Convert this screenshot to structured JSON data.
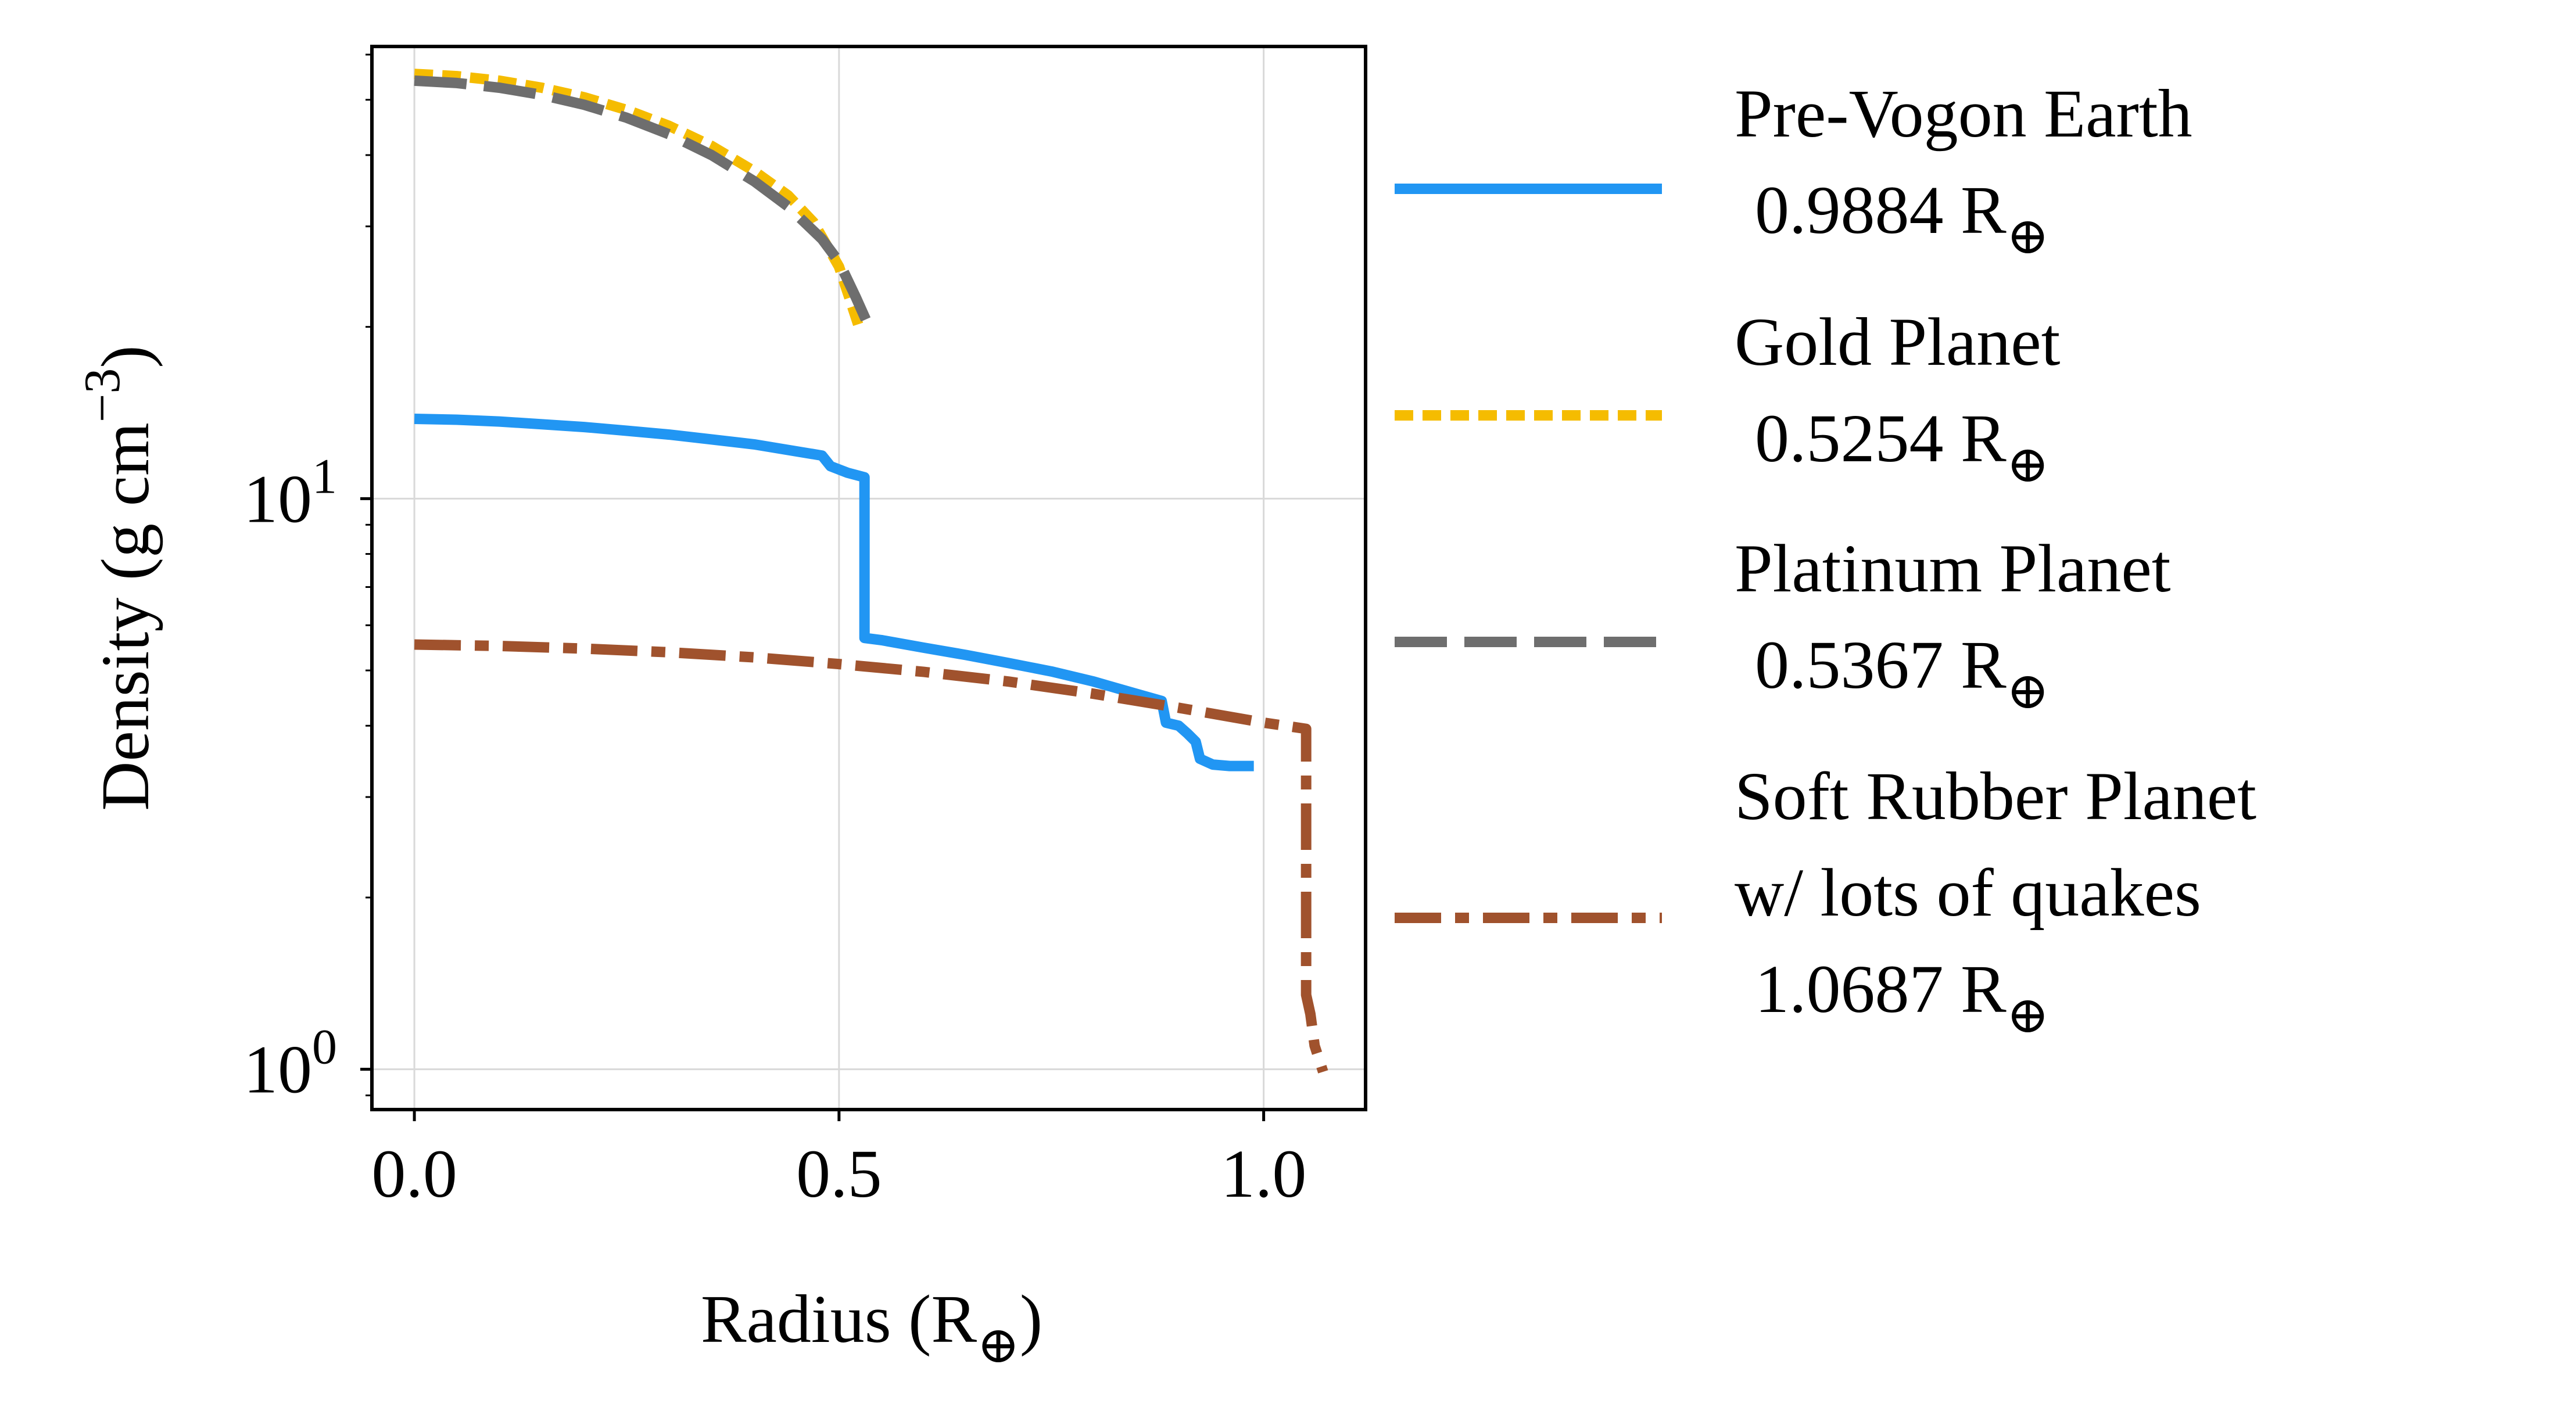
{
  "chart_data": {
    "type": "line",
    "xscale": "linear",
    "yscale": "log",
    "xlim": [
      -0.05,
      1.12
    ],
    "ylim": [
      0.85,
      62
    ],
    "grid": true,
    "legend_location": "outside-right",
    "xlabel": {
      "main": "Radius (R",
      "sub": "⊕",
      "close": ")"
    },
    "ylabel": {
      "main": "Density (g cm",
      "sup": "−3",
      "close": ")"
    },
    "x_ticks": [
      {
        "value": 0.0,
        "label": "0.0"
      },
      {
        "value": 0.5,
        "label": "0.5"
      },
      {
        "value": 1.0,
        "label": "1.0"
      }
    ],
    "y_ticks": [
      {
        "value": 1,
        "base": "10",
        "exp": "0"
      },
      {
        "value": 10,
        "base": "10",
        "exp": "1"
      }
    ],
    "series": [
      {
        "name": "Pre-Vogon Earth",
        "radius_value": "0.9884 R",
        "color": "#2196f3",
        "style": "solid",
        "x": [
          0.0,
          0.05,
          0.1,
          0.15,
          0.2,
          0.25,
          0.3,
          0.35,
          0.4,
          0.45,
          0.48,
          0.49,
          0.51,
          0.53,
          0.53,
          0.55,
          0.6,
          0.65,
          0.7,
          0.75,
          0.8,
          0.85,
          0.88,
          0.885,
          0.9,
          0.91,
          0.92,
          0.925,
          0.94,
          0.96,
          0.9884
        ],
        "y": [
          13.8,
          13.75,
          13.65,
          13.5,
          13.35,
          13.15,
          12.95,
          12.7,
          12.45,
          12.1,
          11.9,
          11.4,
          11.1,
          10.9,
          5.7,
          5.65,
          5.48,
          5.32,
          5.15,
          4.98,
          4.78,
          4.55,
          4.42,
          4.05,
          4.0,
          3.88,
          3.75,
          3.5,
          3.42,
          3.4,
          3.4
        ]
      },
      {
        "name": "Gold Planet",
        "radius_value": "0.5254 R",
        "color": "#f5bc00",
        "style": "dotted",
        "x": [
          0.0,
          0.05,
          0.1,
          0.15,
          0.2,
          0.25,
          0.3,
          0.35,
          0.4,
          0.44,
          0.47,
          0.5,
          0.51,
          0.5254
        ],
        "y": [
          55.5,
          55.0,
          54.0,
          52.5,
          50.5,
          48.0,
          45.0,
          41.5,
          37.5,
          34.0,
          30.5,
          25.5,
          23.0,
          19.6
        ]
      },
      {
        "name": "Platinum Planet",
        "radius_value": "0.5367 R",
        "color": "#6e6e6e",
        "style": "dashed",
        "x": [
          0.0,
          0.05,
          0.1,
          0.15,
          0.2,
          0.25,
          0.3,
          0.35,
          0.4,
          0.44,
          0.48,
          0.5,
          0.52,
          0.5367
        ],
        "y": [
          54.0,
          53.5,
          52.5,
          51.0,
          49.0,
          46.5,
          43.5,
          40.0,
          36.0,
          32.5,
          28.5,
          26.0,
          22.5,
          19.8
        ]
      },
      {
        "name": "Soft Rubber Planet\nw/ lots of quakes",
        "radius_value": "1.0687 R",
        "color": "#a0522d",
        "style": "dashdot",
        "x": [
          0.0,
          0.1,
          0.2,
          0.3,
          0.4,
          0.5,
          0.6,
          0.7,
          0.8,
          0.9,
          1.0,
          1.05,
          1.05,
          1.055,
          1.06,
          1.07
        ],
        "y": [
          5.55,
          5.52,
          5.46,
          5.38,
          5.27,
          5.13,
          4.97,
          4.78,
          4.55,
          4.3,
          4.05,
          3.95,
          1.35,
          1.25,
          1.1,
          0.99
        ]
      }
    ],
    "legend_subscript": "⊕"
  }
}
